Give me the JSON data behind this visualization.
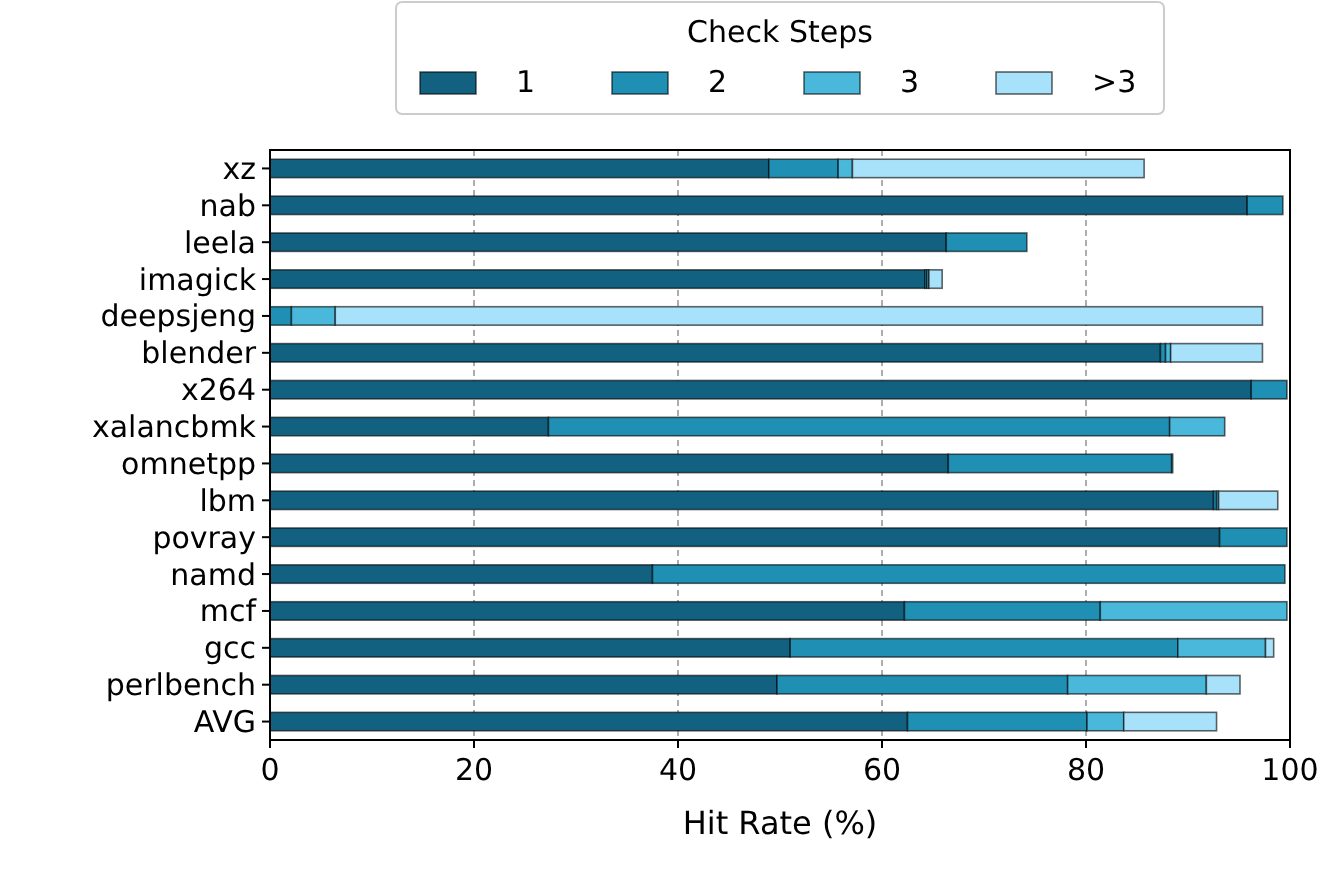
{
  "chart_data": {
    "type": "bar",
    "orientation": "horizontal",
    "stacked": true,
    "xlabel": "Hit Rate (%)",
    "legend_title": "Check Steps",
    "legend": "top",
    "grid": "x",
    "xlim": [
      0,
      100
    ],
    "xticks": [
      0,
      20,
      40,
      60,
      80,
      100
    ],
    "categories": [
      "xz",
      "nab",
      "leela",
      "imagick",
      "deepsjeng",
      "blender",
      "x264",
      "xalancbmk",
      "omnetpp",
      "lbm",
      "povray",
      "namd",
      "mcf",
      "gcc",
      "perlbench",
      "AVG"
    ],
    "series": [
      {
        "name": "1",
        "color": "#126180",
        "values": [
          48.9,
          95.8,
          66.3,
          64.2,
          0,
          87.3,
          96.2,
          27.3,
          66.5,
          92.5,
          93.1,
          37.5,
          62.2,
          51.0,
          49.7,
          62.5
        ]
      },
      {
        "name": "2",
        "color": "#1f90b4",
        "values": [
          6.8,
          3.5,
          7.9,
          0.2,
          2.1,
          0.5,
          3.5,
          60.9,
          21.9,
          0.3,
          6.6,
          62.0,
          19.2,
          38.0,
          28.5,
          17.6
        ]
      },
      {
        "name": "3",
        "color": "#4ab8da",
        "values": [
          1.4,
          0,
          0,
          0.2,
          4.3,
          0.5,
          0,
          5.4,
          0.1,
          0.2,
          0,
          0,
          18.3,
          8.6,
          13.6,
          3.6
        ]
      },
      {
        "name": ">3",
        "color": "#a8e1fa",
        "values": [
          28.6,
          0,
          0,
          1.3,
          90.9,
          9.0,
          0,
          0,
          0,
          5.8,
          0,
          0,
          0,
          0.8,
          3.3,
          9.1
        ]
      }
    ]
  }
}
